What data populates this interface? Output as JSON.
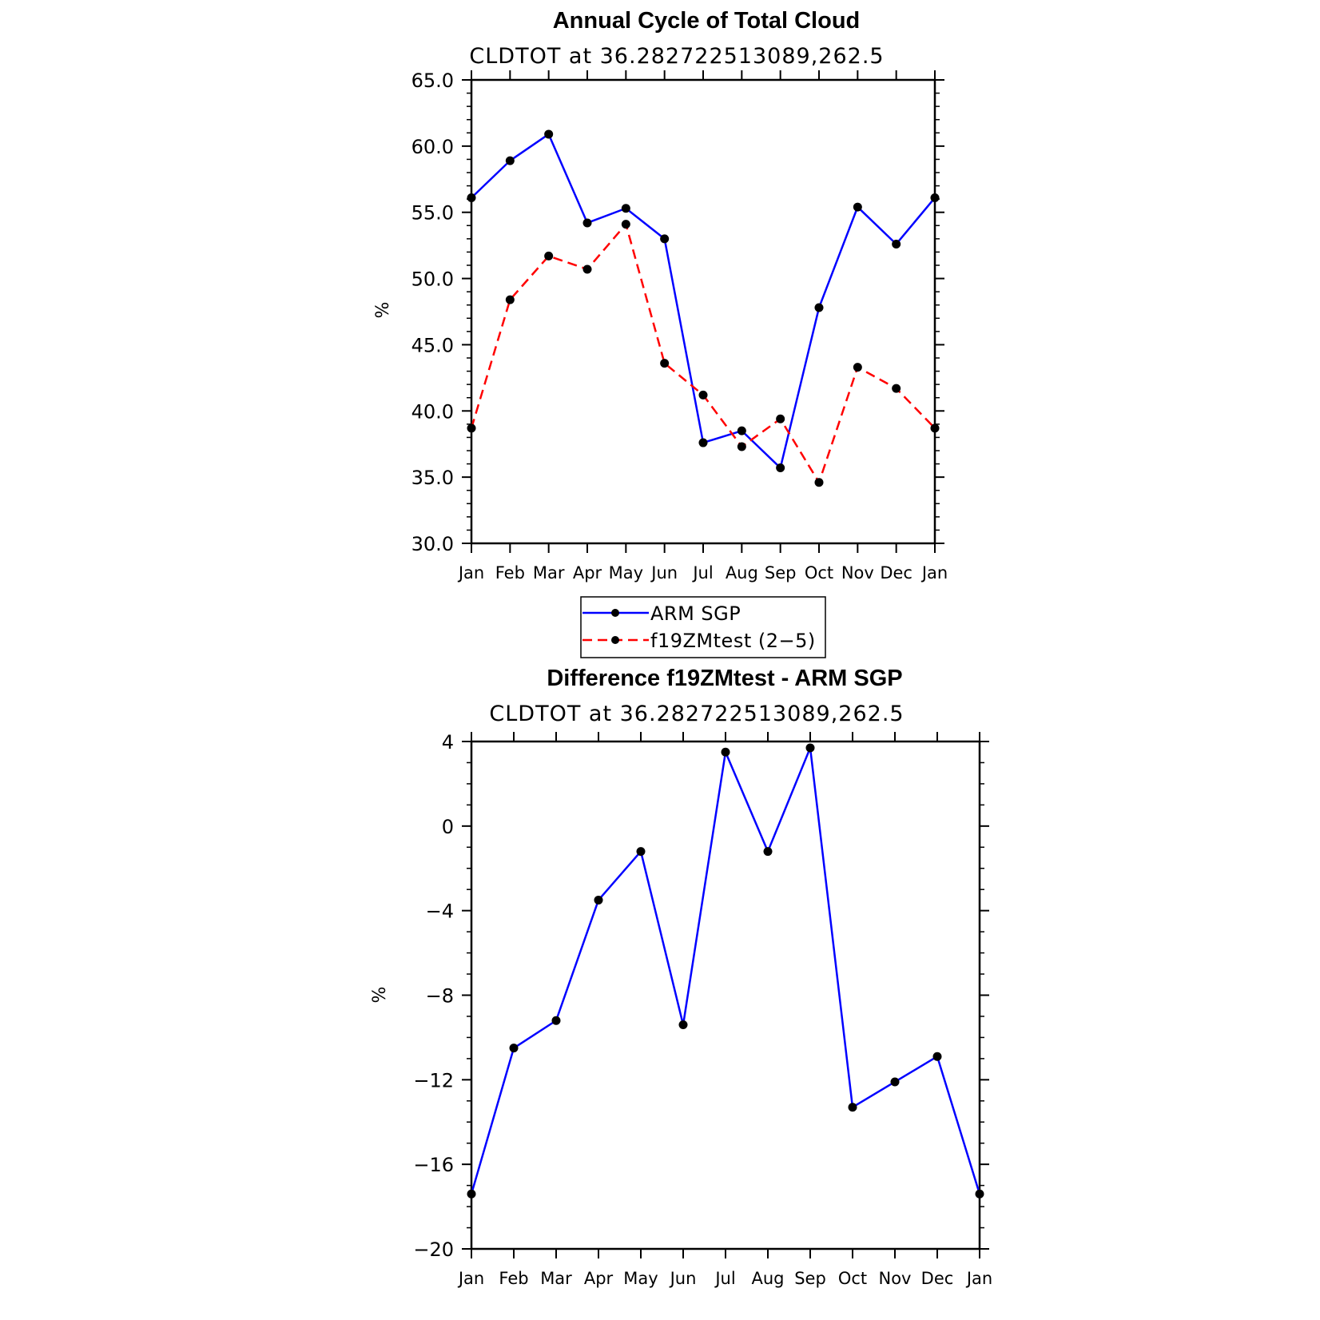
{
  "chart_data": [
    {
      "type": "line",
      "title": "Annual Cycle of Total Cloud",
      "subtitle": "CLDTOT at 36.282722513089,262.5",
      "ylabel": "%",
      "ylim": [
        30,
        65
      ],
      "yticks": [
        "30.0",
        "35.0",
        "40.0",
        "45.0",
        "50.0",
        "55.0",
        "60.0",
        "65.0"
      ],
      "categories": [
        "Jan",
        "Feb",
        "Mar",
        "Apr",
        "May",
        "Jun",
        "Jul",
        "Aug",
        "Sep",
        "Oct",
        "Nov",
        "Dec",
        "Jan"
      ],
      "legend": "below",
      "series": [
        {
          "name": "ARM SGP",
          "color": "#0000ff",
          "dash": "solid",
          "values": [
            56.1,
            58.9,
            60.9,
            54.2,
            55.3,
            53.0,
            37.6,
            38.5,
            35.7,
            47.8,
            55.4,
            52.6,
            56.1
          ]
        },
        {
          "name": "f19ZMtest (2−5)",
          "color": "#ff0000",
          "dash": "dashed",
          "values": [
            38.7,
            48.4,
            51.7,
            50.7,
            54.1,
            43.6,
            41.2,
            37.3,
            39.4,
            34.6,
            43.3,
            41.7,
            38.7
          ]
        }
      ]
    },
    {
      "type": "line",
      "title": "Difference f19ZMtest - ARM SGP",
      "subtitle": "CLDTOT at 36.282722513089,262.5",
      "ylabel": "%",
      "ylim": [
        -20,
        4
      ],
      "yticks": [
        "−20",
        "−16",
        "−12",
        "−8",
        "−4",
        "0",
        "4"
      ],
      "categories": [
        "Jan",
        "Feb",
        "Mar",
        "Apr",
        "May",
        "Jun",
        "Jul",
        "Aug",
        "Sep",
        "Oct",
        "Nov",
        "Dec",
        "Jan"
      ],
      "series": [
        {
          "color": "#0000ff",
          "dash": "solid",
          "values": [
            -17.4,
            -10.5,
            -9.2,
            -3.5,
            -1.2,
            -9.4,
            3.5,
            -1.2,
            3.7,
            -13.3,
            -12.1,
            -10.9,
            -17.4
          ]
        }
      ]
    }
  ]
}
